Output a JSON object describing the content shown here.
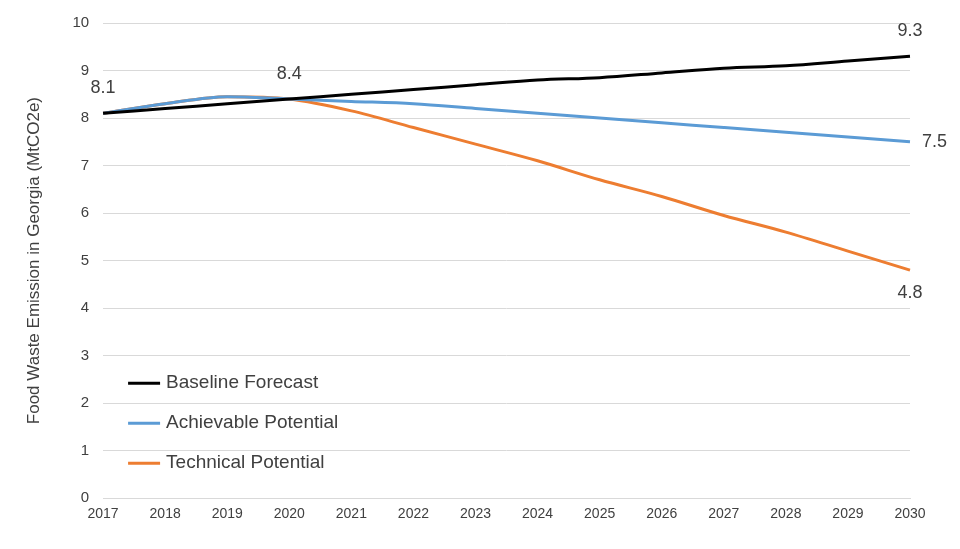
{
  "chart_data": {
    "type": "line",
    "y_label": "Food Waste Emission in Georgia (MtCO2e)",
    "categories": [
      "2017",
      "2018",
      "2019",
      "2020",
      "2021",
      "2022",
      "2023",
      "2024",
      "2025",
      "2026",
      "2027",
      "2028",
      "2029",
      "2030"
    ],
    "series": [
      {
        "name": "Baseline Forecast",
        "color": "#000000",
        "values": [
          8.1,
          8.2,
          8.3,
          8.4,
          8.5,
          8.6,
          8.7,
          8.8,
          8.85,
          8.95,
          9.05,
          9.1,
          9.2,
          9.3
        ],
        "value_labels": [
          "8.1",
          null,
          null,
          "8.4",
          null,
          null,
          null,
          null,
          null,
          null,
          null,
          null,
          null,
          "9.3"
        ]
      },
      {
        "name": "Achievable Potential",
        "color": "#5b9bd5",
        "values": [
          8.1,
          8.3,
          8.45,
          8.4,
          8.35,
          8.3,
          8.2,
          8.1,
          8.0,
          7.9,
          7.8,
          7.7,
          7.6,
          7.5
        ],
        "value_labels": [
          null,
          null,
          null,
          null,
          null,
          null,
          null,
          null,
          null,
          null,
          null,
          null,
          null,
          "7.5"
        ]
      },
      {
        "name": "Technical Potential",
        "color": "#ed7d31",
        "values": [
          8.1,
          8.3,
          8.45,
          8.4,
          8.15,
          7.8,
          7.45,
          7.1,
          6.7,
          6.35,
          5.95,
          5.6,
          5.2,
          4.8
        ],
        "value_labels": [
          null,
          null,
          null,
          null,
          null,
          null,
          null,
          null,
          null,
          null,
          null,
          null,
          null,
          "4.8"
        ]
      }
    ],
    "ylim": [
      0,
      10
    ],
    "yticks": [
      0,
      1,
      2,
      3,
      4,
      5,
      6,
      7,
      8,
      9,
      10
    ],
    "grid": true,
    "legend": "lower left"
  }
}
